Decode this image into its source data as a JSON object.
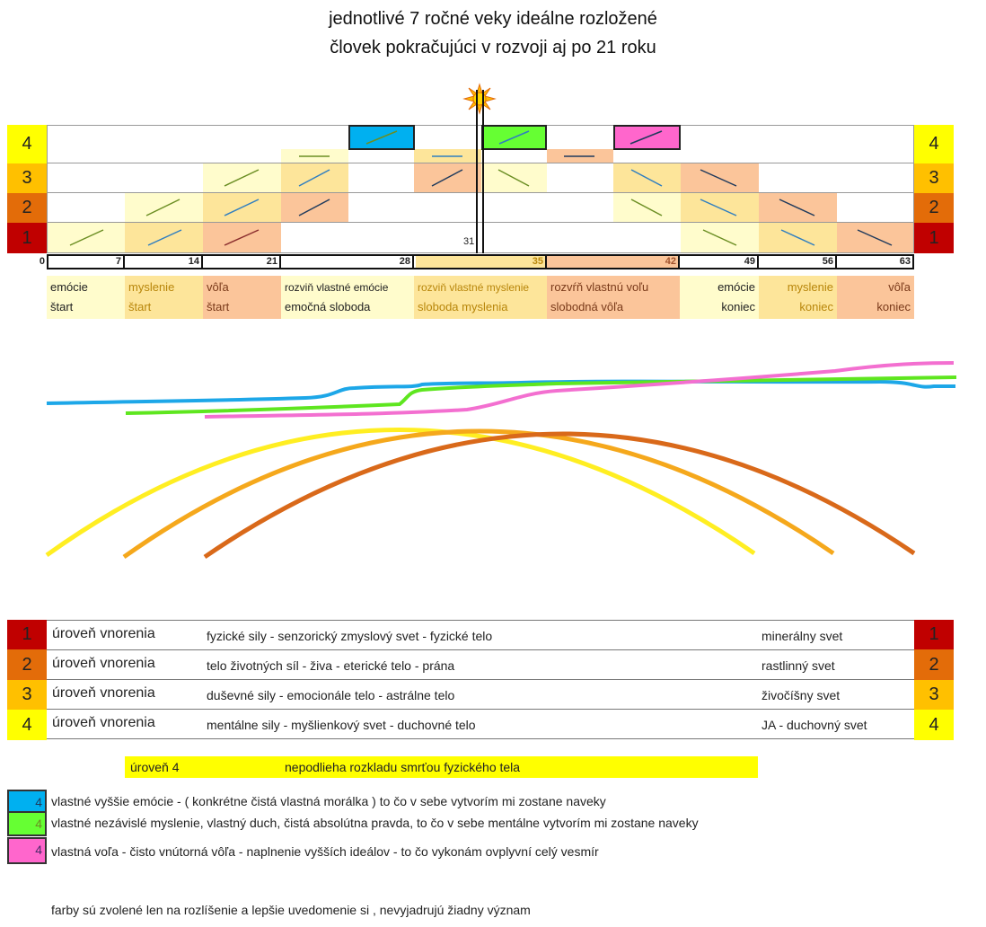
{
  "title": {
    "line1": "jednotlivé 7 ročné veky ideálne rozložené",
    "line2": "človek pokračujúci v rozvoji aj po 21 roku"
  },
  "colors": {
    "level1": "#c00000",
    "level2": "#e36c09",
    "level3": "#ffc000",
    "level4": "#ffff00",
    "blue": "#00b0f0",
    "green": "#66ff33",
    "pink": "#ff66cc",
    "cream": "#fffccc",
    "tan": "#fde59a",
    "peach": "#fbc59a"
  },
  "levels": [
    "4",
    "3",
    "2",
    "1"
  ],
  "axis": {
    "ticks": [
      "0",
      "7",
      "14",
      "21",
      "28",
      "35",
      "42",
      "49",
      "56",
      "63"
    ],
    "midpoint_label": "31"
  },
  "phases": [
    {
      "line1": "emócie",
      "line2": "štart"
    },
    {
      "line1": "myslenie",
      "line2": "štart"
    },
    {
      "line1": "vôľa",
      "line2": "štart"
    },
    {
      "line1": "rozviň vlastné emócie",
      "line2": "emočná sloboda"
    },
    {
      "line1": "rozviň vlastné myslenie",
      "line2": "sloboda myslenia"
    },
    {
      "line1": "rozvŕň vlastnú voľu",
      "line2": "slobodná vôľa"
    },
    {
      "line1": "emócie",
      "line2": "koniec"
    },
    {
      "line1": "myslenie",
      "line2": "koniec"
    },
    {
      "line1": "vôľa",
      "line2": "koniec"
    }
  ],
  "table": [
    {
      "num": "1",
      "label": "úroveň vnorenia",
      "desc": "fyzické sily - senzorický zmyslový svet - fyzické telo",
      "world": "minerálny svet"
    },
    {
      "num": "2",
      "label": "úroveň vnorenia",
      "desc": "telo životných síl - živa - eterické telo - prána",
      "world": "rastlinný svet"
    },
    {
      "num": "3",
      "label": "úroveň vnorenia",
      "desc": "duševné sily - emocionále telo - astrálne telo",
      "world": "živočíšny svet"
    },
    {
      "num": "4",
      "label": "úroveň vnorenia",
      "desc": "mentálne sily - myšlienkový svet - duchovné telo",
      "world": "JA - duchovný svet"
    }
  ],
  "banner": {
    "label": "úroveň 4",
    "text": "nepodlieha rozkladu smrťou fyzického tela"
  },
  "legend": [
    {
      "num": "4",
      "text": "vlastné vyššie emócie - ( konkrétne čistá vlastná morálka ) to čo v sebe vytvorím mi zostane naveky"
    },
    {
      "num": "4",
      "text": "vlastné nezávislé myslenie, vlastný duch, čistá absolútna pravda, to čo v sebe mentálne vytvorím mi zostane naveky"
    },
    {
      "num": "4",
      "text": "vlastná voľa - čisto vnútorná vôľa - naplnenie vyšších ideálov - to čo vykonám ovplyvní celý vesmír"
    }
  ],
  "footnote": "farby  sú zvolené len na rozlíšenie a lepšie uvedomenie si , nevyjadrujú žiadny význam"
}
